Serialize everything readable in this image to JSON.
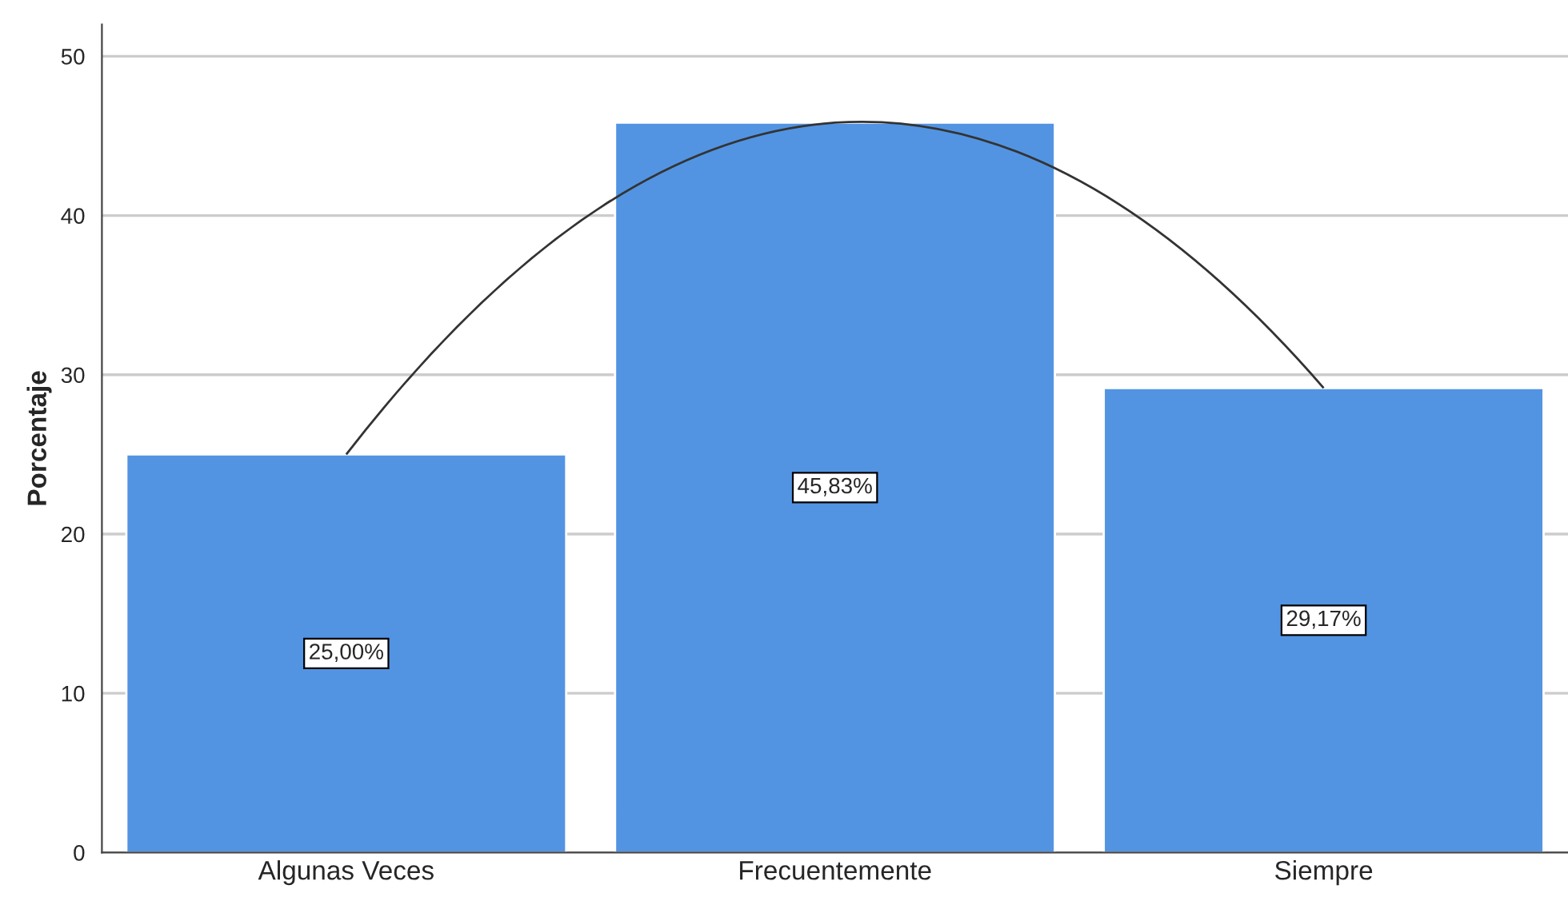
{
  "chart_data": {
    "type": "bar",
    "ylabel": "Porcentaje",
    "categories": [
      "Algunas Veces",
      "Frecuentemente",
      "Siempre"
    ],
    "series": [
      {
        "color": "#5294e2",
        "values": [
          25.0,
          45.83,
          29.17
        ],
        "value_labels": [
          "25,00%",
          "45,83%",
          "29,17%"
        ]
      },
      {
        "type": "line",
        "color": "#333333",
        "values": [
          25.0,
          45.83,
          29.17
        ]
      }
    ],
    "ylim": [
      0,
      52
    ],
    "yticks": [
      0,
      10,
      20,
      30,
      40,
      50
    ],
    "grid": "y",
    "legend": false
  }
}
